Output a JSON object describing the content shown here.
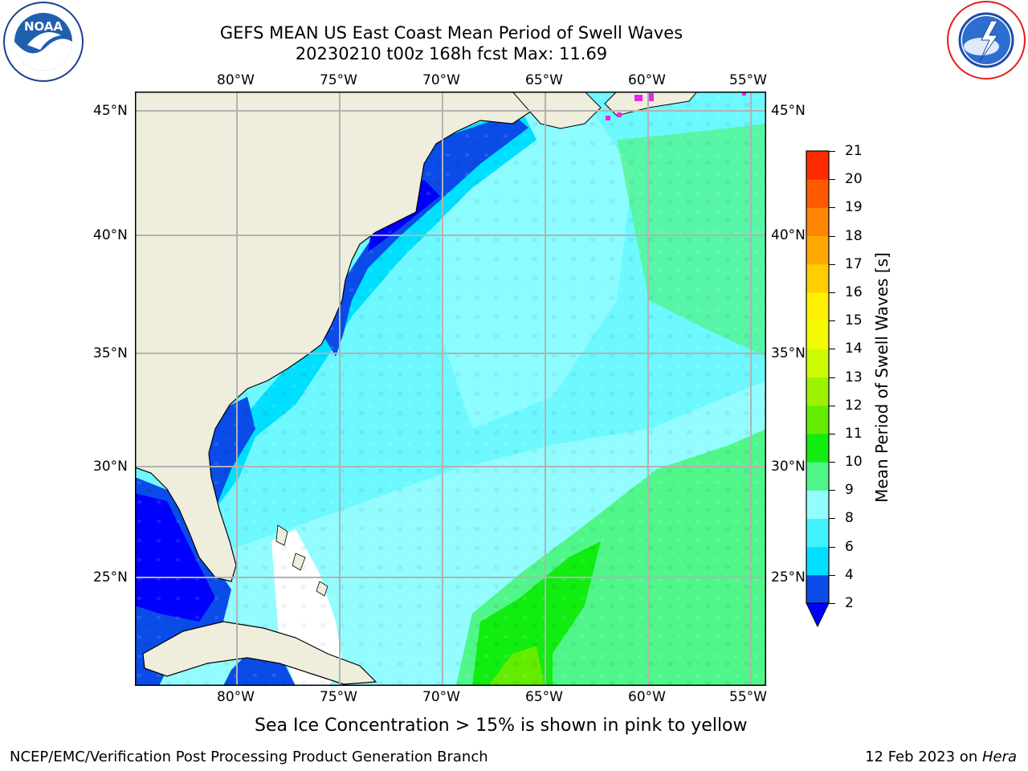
{
  "header": {
    "title_line1": "GEFS MEAN US East Coast Mean Period of Swell Waves",
    "title_line2": "20230210 t00z 168h fcst   Max: 11.69"
  },
  "logos": {
    "left": {
      "icon": "noaa-logo-icon",
      "text": "NOAA",
      "ring_text": "NATIONAL OCEANIC AND ATMOSPHERIC ADMINISTRATION · U.S. DEPARTMENT OF COMMERCE"
    },
    "right": {
      "icon": "nws-logo-icon",
      "ring_text": "NATIONAL WEATHER SERVICE"
    }
  },
  "map": {
    "lon_labels": [
      "80°W",
      "75°W",
      "70°W",
      "65°W",
      "60°W",
      "55°W"
    ],
    "lat_labels": [
      "45°N",
      "40°N",
      "35°N",
      "30°N",
      "25°N"
    ],
    "colors": {
      "land": "#efeedc",
      "grid": "#b2b2b2",
      "coast": "#000000",
      "ice_pink": "#ee22ee"
    }
  },
  "colorbar": {
    "label": "Mean Period of Swell Waves [s]",
    "ticks": [
      "2",
      "4",
      "6",
      "8",
      "9",
      "10",
      "11",
      "12",
      "13",
      "14",
      "15",
      "16",
      "17",
      "18",
      "19",
      "20",
      "21"
    ],
    "colors": [
      "#0a4ce8",
      "#00dfff",
      "#41f3ff",
      "#92fcff",
      "#50f68a",
      "#11ec11",
      "#63ec00",
      "#9cf200",
      "#ccfa00",
      "#f2fb00",
      "#fff200",
      "#ffcd00",
      "#ffa800",
      "#ff8400",
      "#ff5a00",
      "#ff2c00"
    ],
    "under_color": "#0000ff"
  },
  "caption": "Sea Ice Concentration > 15% is shown in pink to yellow",
  "footer": {
    "left": "NCEP/EMC/Verification Post Processing Product Generation Branch",
    "right_date": "12 Feb 2023 on ",
    "right_host": "Hera"
  }
}
